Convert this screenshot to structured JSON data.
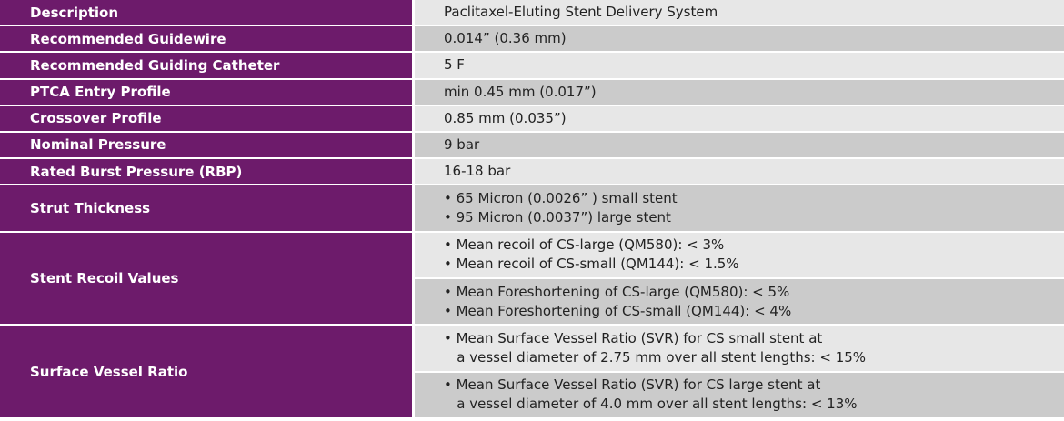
{
  "rows": [
    {
      "label": "Description",
      "value": "Paclitaxel-Eluting Stent Delivery System"
    },
    {
      "label": "Recommended Guidewire",
      "value": "0.014” (0.36 mm)"
    },
    {
      "label": "Recommended Guiding Catheter",
      "value": "5 F"
    },
    {
      "label": "PTCA Entry Profile",
      "value": "min 0.45 mm (0.017”)"
    },
    {
      "label": "Crossover Profile",
      "value": "0.85 mm (0.035”)"
    },
    {
      "label": "Nominal Pressure",
      "value": "9 bar"
    },
    {
      "label": "Rated Burst Pressure (RBP)",
      "value": "16-18 bar"
    },
    {
      "label": "Strut Thickness",
      "lines": [
        "• 65 Micron (0.0026” ) small stent",
        "• 95 Micron (0.0037”) large stent"
      ]
    },
    {
      "label": "Stent Recoil Values",
      "groups": [
        [
          "• Mean recoil of CS-large (QM580): < 3%",
          "• Mean recoil of CS-small (QM144): < 1.5%"
        ],
        [
          "• Mean Foreshortening of CS-large (QM580): < 5%",
          "• Mean Foreshortening of CS-small (QM144): < 4%"
        ]
      ]
    },
    {
      "label": "Surface Vessel Ratio",
      "groups": [
        [
          "• Mean Surface Vessel Ratio (SVR) for CS small stent at",
          "   a vessel diameter of 2.75 mm over all stent lengths: < 15%"
        ],
        [
          "• Mean Surface Vessel Ratio (SVR) for CS large stent at",
          "   a vessel diameter of 4.0 mm over all stent lengths: < 13%"
        ]
      ]
    }
  ],
  "colors": {
    "label_bg": "#6d1b6b",
    "row_light": "#e7e7e7",
    "row_dark": "#cbcbcb"
  }
}
